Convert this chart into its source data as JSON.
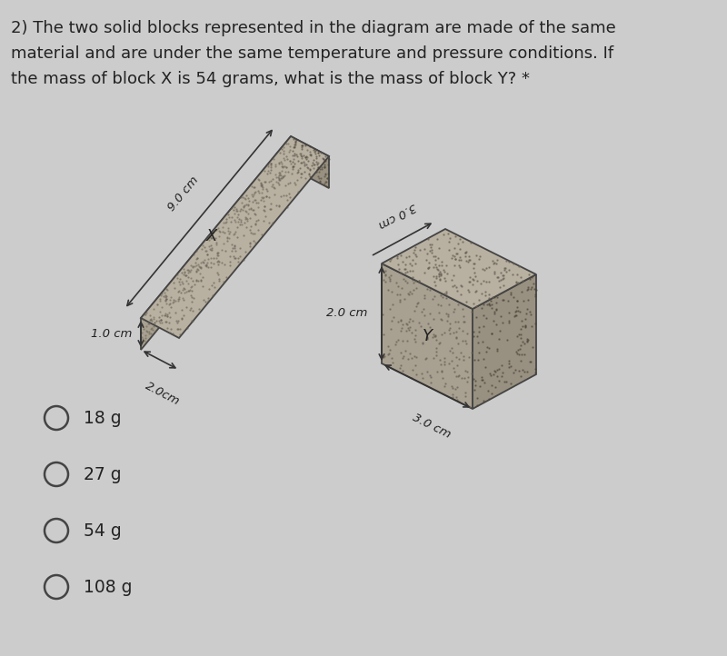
{
  "bg_color": "#cccccc",
  "title_lines": [
    "2) The two solid blocks represented in the diagram are made of the same",
    "material and are under the same temperature and pressure conditions. If",
    "the mass of block X is 54 grams, what is the mass of block Y? *"
  ],
  "title_fontsize": 13.0,
  "block_top_color": "#b8b0a0",
  "block_front_color": "#a8a090",
  "block_right_color": "#989080",
  "block_edge_color": "#444444",
  "dot_color": "#666055",
  "choices": [
    "18 g",
    "27 g",
    "54 g",
    "108 g"
  ],
  "choices_fontsize": 13.5,
  "dim_fontsize": 9.5,
  "label_fontsize": 13,
  "arrow_color": "#333333"
}
